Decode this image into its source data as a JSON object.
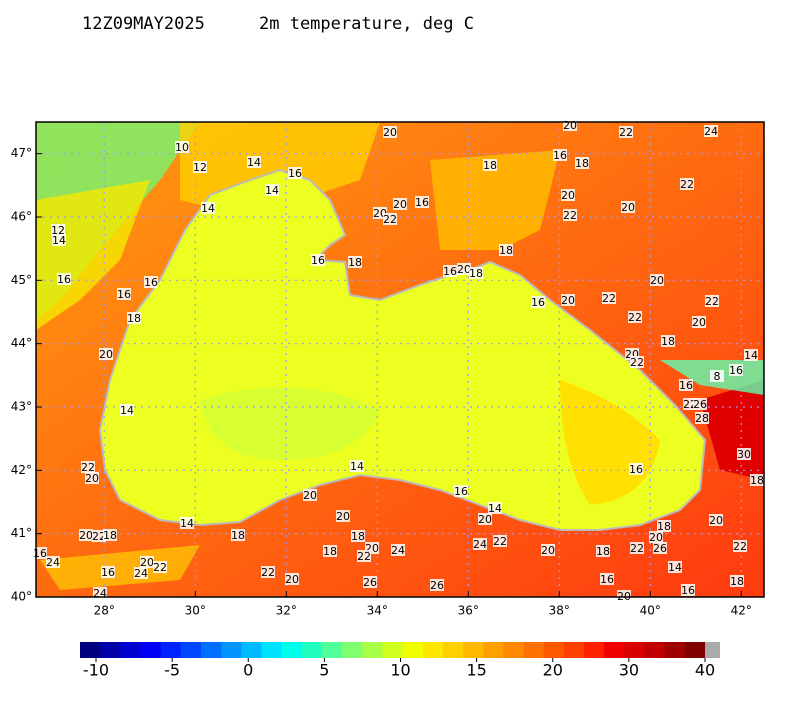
{
  "header": {
    "time": "12Z09MAY2025",
    "title": "2m temperature, deg C"
  },
  "map": {
    "xlim": [
      26.5,
      42.5
    ],
    "ylim": [
      40,
      47.5
    ],
    "xticks": [
      {
        "value": 28,
        "label": "28°"
      },
      {
        "value": 30,
        "label": "30°"
      },
      {
        "value": 32,
        "label": "32°"
      },
      {
        "value": 34,
        "label": "34°"
      },
      {
        "value": 36,
        "label": "36°"
      },
      {
        "value": 38,
        "label": "38°"
      },
      {
        "value": 40,
        "label": "40°"
      },
      {
        "value": 42,
        "label": "42°"
      }
    ],
    "yticks": [
      {
        "value": 40,
        "label": "40°"
      },
      {
        "value": 41,
        "label": "41°"
      },
      {
        "value": 42,
        "label": "42°"
      },
      {
        "value": 43,
        "label": "43°"
      },
      {
        "value": 44,
        "label": "44°"
      },
      {
        "value": 45,
        "label": "45°"
      },
      {
        "value": 46,
        "label": "46°"
      },
      {
        "value": 47,
        "label": "47°"
      }
    ],
    "grid": true,
    "contour_labels": [
      10,
      12,
      14,
      16,
      14,
      14,
      20,
      18,
      16,
      18,
      20,
      22,
      24,
      22,
      20,
      22,
      20,
      16,
      20,
      20,
      22,
      18,
      16,
      18,
      16,
      20,
      18,
      16,
      20,
      22,
      20,
      22,
      22,
      20,
      18,
      20,
      22,
      16,
      16,
      16,
      18,
      20,
      14,
      12,
      14,
      14,
      16,
      8,
      16,
      22,
      26,
      28,
      30,
      18,
      16,
      14,
      16,
      14,
      20,
      20,
      20,
      14,
      18,
      20,
      22,
      18,
      18,
      20,
      22,
      24,
      18,
      24,
      22,
      20,
      18,
      22,
      26,
      20,
      18,
      20,
      22,
      14,
      16,
      16,
      18,
      20,
      26,
      26,
      22,
      20,
      20,
      22,
      24,
      16,
      24,
      24,
      22,
      20,
      16
    ]
  },
  "colorbar": {
    "ticks": [
      -10,
      -5,
      0,
      5,
      10,
      15,
      20,
      30,
      40
    ],
    "colors": [
      "#00007f",
      "#0000a8",
      "#0000d0",
      "#0000f5",
      "#0022ff",
      "#0048ff",
      "#006eff",
      "#0094ff",
      "#00baff",
      "#00e0ff",
      "#00ffe8",
      "#20ffc0",
      "#50ff98",
      "#80ff70",
      "#a8ff48",
      "#d0ff20",
      "#f0ff00",
      "#ffe800",
      "#ffd000",
      "#ffb800",
      "#ffa000",
      "#ff8800",
      "#ff7000",
      "#ff5800",
      "#ff4000",
      "#ff2000",
      "#f00000",
      "#d80000",
      "#c00000",
      "#a00000",
      "#800000"
    ],
    "over": "#aaaaaa"
  }
}
